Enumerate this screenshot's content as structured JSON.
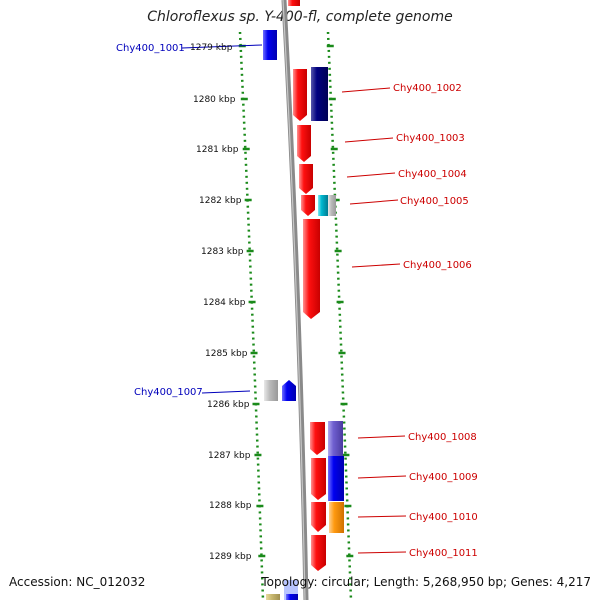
{
  "title": "Chloroflexus sp. Y-400-fl, complete genome",
  "accession": "Accession: NC_012032",
  "topology": "Topology: circular; Length: 5,268,950 bp; Genes: 4,217",
  "colors": {
    "forward_label": "#cc0000",
    "reverse_label": "#0000bb",
    "gene_red": "#ee0000",
    "gene_blue": "#0000ee",
    "gene_navy": "#000080",
    "gene_purple": "#6a5acd",
    "gene_orange": "#ff8c00",
    "gene_cyan": "#00b5cc",
    "gene_grey": "#bbbbbb",
    "gene_khaki": "#c8b870",
    "backbone": "#888888",
    "tick": "#1a8a1a"
  },
  "kbp_labels": [
    "1279 kbp",
    "1280 kbp",
    "1281 kbp",
    "1282 kbp",
    "1283 kbp",
    "1284 kbp",
    "1285 kbp",
    "1286 kbp",
    "1287 kbp",
    "1288 kbp",
    "1289 kbp"
  ],
  "genes": [
    {
      "label": "Chy400_1001",
      "strand": "reverse"
    },
    {
      "label": "Chy400_1002",
      "strand": "forward"
    },
    {
      "label": "Chy400_1003",
      "strand": "forward"
    },
    {
      "label": "Chy400_1004",
      "strand": "forward"
    },
    {
      "label": "Chy400_1005",
      "strand": "forward"
    },
    {
      "label": "Chy400_1006",
      "strand": "forward"
    },
    {
      "label": "Chy400_1007",
      "strand": "reverse"
    },
    {
      "label": "Chy400_1008",
      "strand": "forward"
    },
    {
      "label": "Chy400_1009",
      "strand": "forward"
    },
    {
      "label": "Chy400_1010",
      "strand": "forward"
    },
    {
      "label": "Chy400_1011",
      "strand": "forward"
    }
  ]
}
